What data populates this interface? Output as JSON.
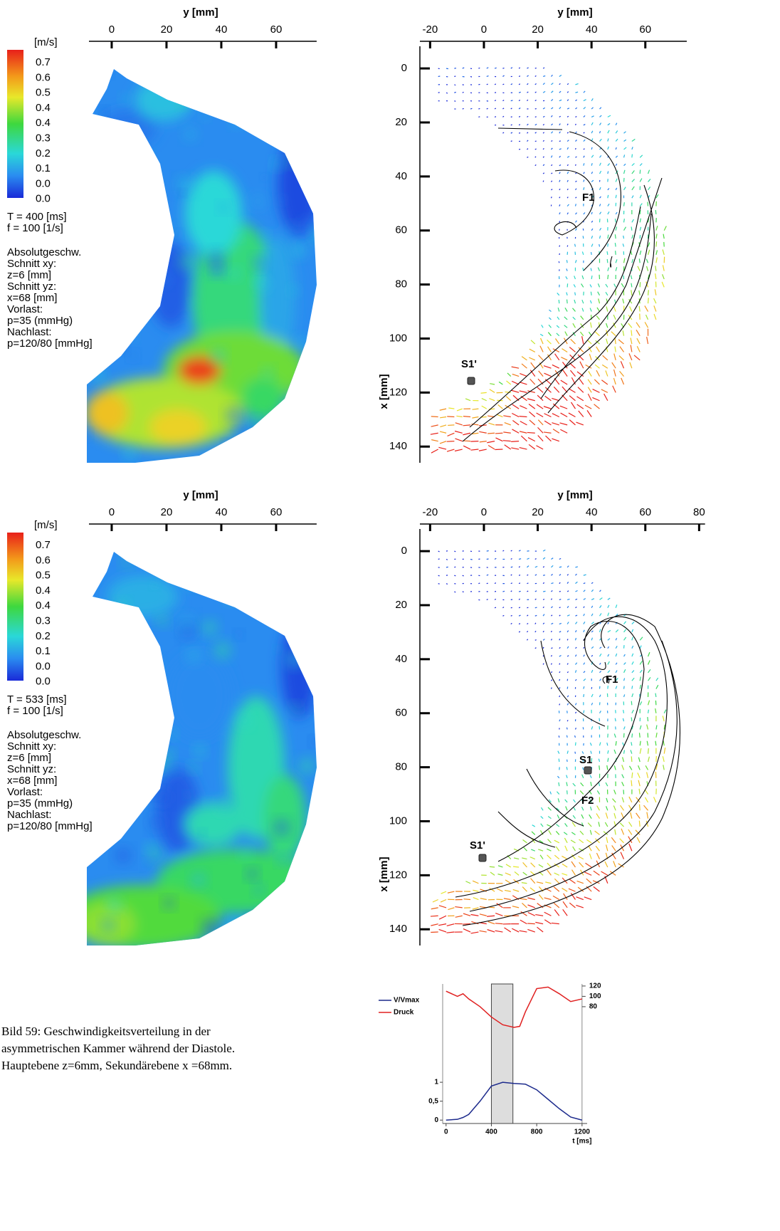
{
  "figure": {
    "panels": [
      {
        "type": "contour",
        "x_label": "y [mm]",
        "xlim": [
          -8.3,
          74.8
        ],
        "xticks": [
          0,
          20,
          40,
          60
        ],
        "colorbar_unit": "[m/s]",
        "colorbar_labels": [
          "0.7",
          "0.6",
          "0.5",
          "0.4",
          "0.4",
          "0.3",
          "0.2",
          "0.1",
          "0.0",
          "0.0"
        ],
        "info": [
          "T = 400 [ms]",
          "f = 100 [1/s]",
          "Absolutgeschw.",
          "Schnitt xy:",
          "z=6 [mm]",
          "Schnitt  yz:",
          "x=68 [mm]",
          "Vorlast:",
          "p=35 (mmHg)",
          "Nachlast:",
          "p=120/80 [mmHg]"
        ]
      },
      {
        "type": "quiver",
        "x_label": "y [mm]",
        "y_label": "x [mm]",
        "xlim": [
          -23.8,
          75.4
        ],
        "xticks": [
          -20,
          0,
          20,
          40,
          60
        ],
        "ylim": [
          -8.2,
          146
        ],
        "yticks": [
          0,
          20,
          40,
          60,
          80,
          100,
          120,
          140
        ],
        "annotations": [
          "F1",
          "S1'"
        ]
      },
      {
        "type": "contour",
        "x_label": "y [mm]",
        "xlim": [
          -8.3,
          74.8
        ],
        "xticks": [
          0,
          20,
          40,
          60
        ],
        "colorbar_unit": "[m/s]",
        "colorbar_labels": [
          "0.7",
          "0.6",
          "0.5",
          "0.4",
          "0.4",
          "0.3",
          "0.2",
          "0.1",
          "0.0",
          "0.0"
        ],
        "info": [
          "T = 533 [ms]",
          "f = 100 [1/s]",
          "Absolutgeschw.",
          "Schnitt xy:",
          "z=6 [mm]",
          "Schnitt  yz:",
          "x=68 [mm]",
          "Vorlast:",
          "p=35 (mmHg)",
          "Nachlast:",
          "p=120/80 [mmHg]"
        ]
      },
      {
        "type": "quiver",
        "x_label": "y [mm]",
        "y_label": "x [mm]",
        "xlim": [
          -23.8,
          82.2
        ],
        "xticks": [
          -20,
          0,
          20,
          40,
          60,
          80
        ],
        "ylim": [
          -8.2,
          146
        ],
        "yticks": [
          0,
          20,
          40,
          60,
          80,
          100,
          120,
          140
        ],
        "annotations": [
          "F1",
          "S1",
          "F2",
          "S1'"
        ]
      }
    ]
  },
  "chart_data": {
    "type": "line",
    "x_label": "t [ms]",
    "x": [
      0,
      100,
      150,
      200,
      300,
      400,
      500,
      600,
      650,
      700,
      800,
      900,
      1000,
      1100,
      1200
    ],
    "xlim": [
      -30,
      1245
    ],
    "xticks": [
      0,
      400,
      800,
      1200
    ],
    "ylim": [
      -0.09,
      3.6
    ],
    "yticks": [
      0,
      {
        "value": 0.5,
        "label": "0,5"
      },
      1
    ],
    "y2lim": [
      -146,
      124
    ],
    "y2ticks": [
      80,
      100,
      120
    ],
    "shaded": [
      400,
      590
    ],
    "series": [
      {
        "name": "V/Vmax",
        "color": "#1c2a8c",
        "values": [
          0,
          0.02,
          0.07,
          0.15,
          0.5,
          0.9,
          1,
          0.97,
          0.96,
          0.95,
          0.8,
          0.55,
          0.3,
          0.08,
          0
        ]
      },
      {
        "name": "Druck",
        "color": "#e02020",
        "axis": "y2",
        "values": [
          110,
          100,
          105,
          95,
          80,
          60,
          45,
          40,
          42,
          70,
          115,
          118,
          105,
          90,
          95
        ]
      }
    ]
  },
  "caption": [
    "Bild 59: Geschwindigkeitsverteilung in der",
    "asymmetrischen Kammer während der Diastole.",
    "Hauptebene z=6mm, Sekundärebene x =68mm."
  ]
}
